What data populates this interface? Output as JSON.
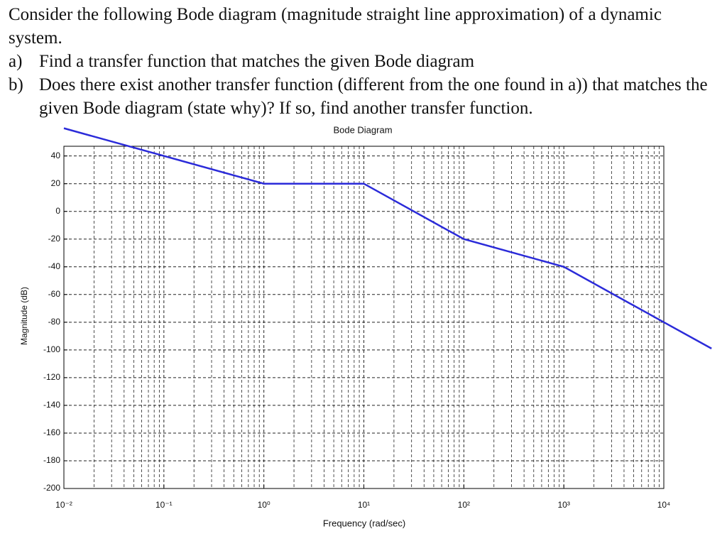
{
  "question": {
    "intro": "Consider the following Bode diagram (magnitude straight line approximation) of a dynamic system.",
    "items": [
      {
        "label": "a)",
        "text": "Find a transfer function that matches the given Bode diagram"
      },
      {
        "label": "b)",
        "text": "Does there exist another transfer function (different from the one found in a)) that matches the given Bode diagram (state why)? If so, find another transfer function."
      }
    ]
  },
  "chart_data": {
    "type": "line",
    "title": "Bode Diagram",
    "xlabel": "Frequency (rad/sec)",
    "ylabel": "Magnitude (dB)",
    "xscale": "log",
    "xlim": [
      0.01,
      10000
    ],
    "xticks": [
      {
        "value": 0.01,
        "label": "10⁻²"
      },
      {
        "value": 0.1,
        "label": "10⁻¹"
      },
      {
        "value": 1,
        "label": "10⁰"
      },
      {
        "value": 10,
        "label": "10¹"
      },
      {
        "value": 100,
        "label": "10²"
      },
      {
        "value": 1000,
        "label": "10³"
      },
      {
        "value": 10000,
        "label": "10⁴"
      }
    ],
    "ylim": [
      -200,
      47
    ],
    "yticks": [
      40,
      20,
      0,
      -20,
      -40,
      -60,
      -80,
      -100,
      -120,
      -140,
      -160,
      -180,
      -200
    ],
    "grid": true,
    "series": [
      {
        "color": "#2b2bd9",
        "x": [
          0.01,
          1,
          10,
          100,
          1000,
          10000,
          30000
        ],
        "values": [
          60,
          20,
          20,
          -20,
          -40,
          -80,
          -99
        ]
      }
    ]
  }
}
